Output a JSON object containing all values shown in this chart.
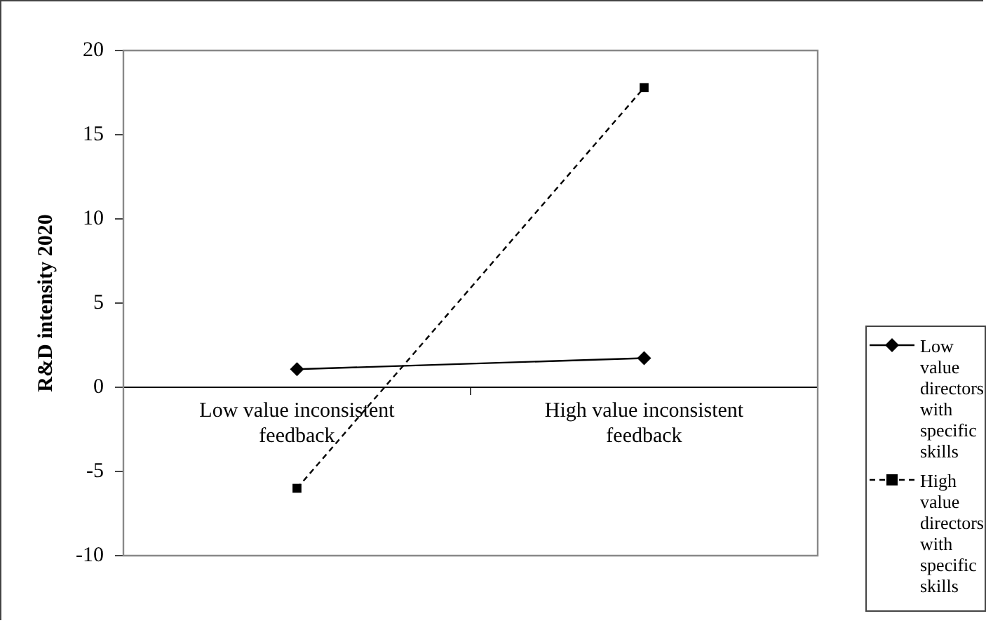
{
  "chart_data": {
    "type": "line",
    "ylabel": "R&D intensity 2020",
    "categories": [
      "Low value inconsistent feedback",
      "High value inconsistent feedback"
    ],
    "series": [
      {
        "name": "Low value directors with specific skills",
        "color": "#000000",
        "values": [
          1.07,
          1.73
        ],
        "marker": "diamond",
        "line_style": "solid"
      },
      {
        "name": "High value directors with specific skills",
        "color": "#000000",
        "values": [
          -6.0,
          17.8
        ],
        "marker": "square",
        "line_style": "dashed"
      }
    ],
    "ylim": [
      -10,
      20
    ],
    "yticks": [
      -10,
      -5,
      0,
      5,
      10,
      15,
      20
    ],
    "grid": false,
    "legend": "right"
  }
}
